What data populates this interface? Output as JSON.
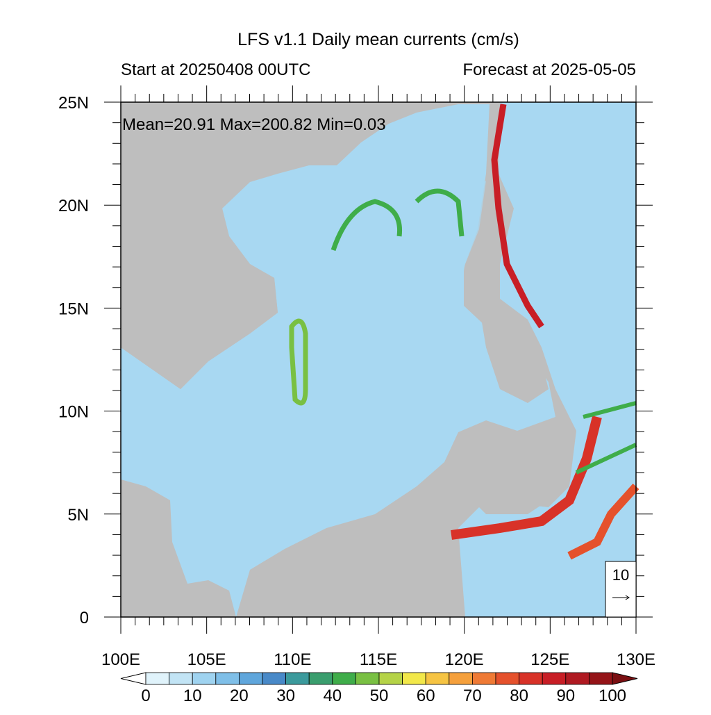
{
  "title": "LFS v1.1 Daily mean currents (cm/s)",
  "start_label": "Start at 20250408 00UTC",
  "forecast_label": "Forecast at 2025-05-05",
  "stats": "Mean=20.91  Max=200.82  Min=0.03",
  "xaxis": {
    "range": [
      100,
      130
    ],
    "ticks": [
      {
        "value": 100,
        "label": "100E"
      },
      {
        "value": 105,
        "label": "105E"
      },
      {
        "value": 110,
        "label": "110E"
      },
      {
        "value": 115,
        "label": "115E"
      },
      {
        "value": 120,
        "label": "120E"
      },
      {
        "value": 125,
        "label": "125E"
      },
      {
        "value": 130,
        "label": "130E"
      }
    ]
  },
  "yaxis": {
    "range": [
      0,
      25
    ],
    "ticks": [
      0,
      {
        "value": 5,
        "label": "5N"
      },
      {
        "value": 10,
        "label": "10N"
      },
      {
        "value": 15,
        "label": "15N"
      },
      {
        "value": 20,
        "label": "20N"
      },
      {
        "value": 25,
        "label": "25N"
      }
    ]
  },
  "colorbar": {
    "range": [
      0,
      100
    ],
    "ticks": [
      0,
      10,
      20,
      30,
      40,
      50,
      60,
      70,
      80,
      90,
      100
    ],
    "colors": [
      "#ffffff",
      "#e0f3fb",
      "#c2e4f5",
      "#9fd3f0",
      "#7fbfe8",
      "#5fa6dc",
      "#4889c8",
      "#3b9a9c",
      "#3a9e6e",
      "#3fad4a",
      "#79c043",
      "#b5d347",
      "#f2e84a",
      "#f6c443",
      "#f5a03c",
      "#ef7a35",
      "#e5512c",
      "#d83228",
      "#c81e26",
      "#b01a22",
      "#951418",
      "#7a0f12"
    ]
  },
  "reference_vector": {
    "label": "10"
  }
}
